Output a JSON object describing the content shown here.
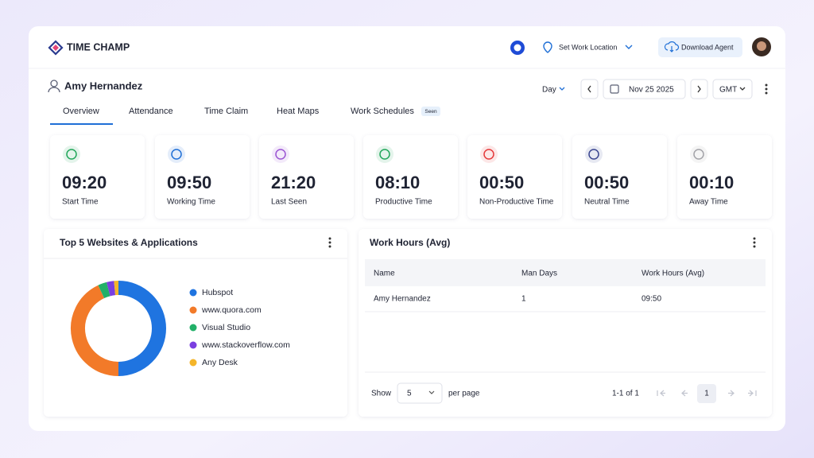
{
  "header": {
    "brand": "TIME CHAMP",
    "location": "Set Work Location",
    "download": "Download Agent"
  },
  "user": {
    "name": "Amy Hernandez",
    "range": "Day",
    "date": "Nov 25 2025",
    "timezone": "GMT"
  },
  "tabs": [
    "Overview",
    "Attendance",
    "Time Claim",
    "Heat Maps",
    "Work Schedules"
  ],
  "badge": "Seen",
  "stats": [
    {
      "value": "09:20",
      "label": "Start Time",
      "color": "#23a75b"
    },
    {
      "value": "09:50",
      "label": "Working Time",
      "color": "#1f6fd6"
    },
    {
      "value": "21:20",
      "label": "Last Seen",
      "color": "#9b55d3"
    },
    {
      "value": "08:10",
      "label": "Productive Time",
      "color": "#23a75b"
    },
    {
      "value": "00:50",
      "label": "Non-Productive Time",
      "color": "#e53a3b"
    },
    {
      "value": "00:50",
      "label": "Neutral Time",
      "color": "#3b4690"
    },
    {
      "value": "00:10",
      "label": "Away Time",
      "color": "#a3a3a8"
    }
  ],
  "chart_data": {
    "type": "pie",
    "title": "Top 5 Websites & Applications",
    "categories": [
      "Hubspot",
      "www.quora.com",
      "Visual Studio",
      "www.stackoverflow.com",
      "Any Desk"
    ],
    "values": [
      50,
      43,
      3,
      2.5,
      1.5
    ],
    "colors": [
      "#1f74e0",
      "#f27a29",
      "#22b068",
      "#7a3fe0",
      "#f4b52a"
    ]
  },
  "table": {
    "title": "Work Hours (Avg)",
    "columns": [
      "Name",
      "Man Days",
      "Work Hours (Avg)"
    ],
    "rows": [
      [
        "Amy Hernandez",
        "1",
        "09:50"
      ]
    ],
    "show": "Show",
    "page_size": "5",
    "per_page": "per page",
    "range": "1-1 of 1",
    "page": "1"
  }
}
